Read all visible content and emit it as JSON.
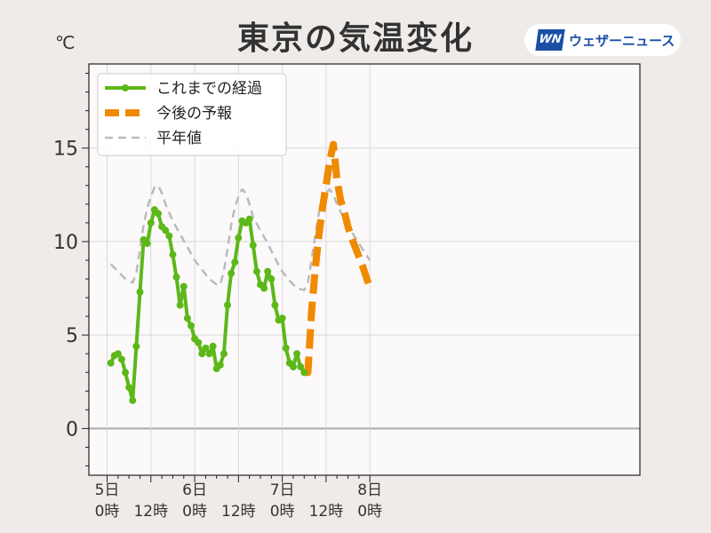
{
  "chart_data": {
    "type": "line",
    "title": "東京の気温変化",
    "unit_label": "℃",
    "ylim": [
      -2.5,
      19.5
    ],
    "xlim": [
      -5,
      146
    ],
    "y_ticks": [
      {
        "value": 0,
        "label": "0"
      },
      {
        "value": 5,
        "label": "5"
      },
      {
        "value": 10,
        "label": "10"
      },
      {
        "value": 15,
        "label": "15"
      }
    ],
    "x_ticks": [
      {
        "value": 0,
        "line1": "5日",
        "line2": "0時"
      },
      {
        "value": 12,
        "line1": "",
        "line2": "12時"
      },
      {
        "value": 24,
        "line1": "6日",
        "line2": "0時"
      },
      {
        "value": 36,
        "line1": "",
        "line2": "12時"
      },
      {
        "value": 48,
        "line1": "7日",
        "line2": "0時"
      },
      {
        "value": 60,
        "line1": "",
        "line2": "12時"
      },
      {
        "value": 72,
        "line1": "8日",
        "line2": "0時"
      }
    ],
    "grid": true,
    "legend_position": "top-left",
    "series": [
      {
        "name": "これまでの経過",
        "color": "#5cb818",
        "style": "solid-markers",
        "x": [
          1,
          2,
          3,
          4,
          5,
          6,
          7,
          8,
          9,
          10,
          11,
          12,
          13,
          14,
          15,
          16,
          17,
          18,
          19,
          20,
          21,
          22,
          23,
          24,
          25,
          26,
          27,
          28,
          29,
          30,
          31,
          32,
          33,
          34,
          35,
          36,
          37,
          38,
          39,
          40,
          41,
          42,
          43,
          44,
          45,
          46,
          47,
          48,
          49,
          50,
          51,
          52,
          53,
          54
        ],
        "y": [
          3.5,
          3.9,
          4.0,
          3.7,
          3.0,
          2.2,
          1.5,
          4.4,
          7.3,
          10.1,
          9.9,
          11.0,
          11.7,
          11.5,
          10.8,
          10.6,
          10.3,
          9.3,
          8.1,
          6.6,
          7.6,
          5.9,
          5.5,
          4.8,
          4.6,
          4.0,
          4.3,
          4.0,
          4.4,
          3.2,
          3.4,
          4.0,
          6.6,
          8.3,
          8.9,
          10.2,
          11.1,
          11.0,
          11.2,
          9.8,
          8.4,
          7.7,
          7.5,
          8.4,
          8.0,
          6.6,
          5.8,
          5.9,
          4.3,
          3.5,
          3.3,
          4.0,
          3.3,
          3.0
        ]
      },
      {
        "name": "今後の予報",
        "color": "#f08a00",
        "style": "dashed-thick",
        "x": [
          54,
          55,
          56,
          57,
          58,
          59,
          60,
          61,
          62,
          63,
          64,
          65,
          66,
          67,
          68,
          69,
          70,
          71,
          72
        ],
        "y": [
          3.0,
          3.0,
          6.2,
          8.5,
          10.3,
          11.8,
          13.0,
          14.3,
          15.2,
          13.3,
          12.2,
          11.6,
          10.8,
          10.2,
          9.7,
          9.2,
          8.7,
          8.1,
          7.5
        ]
      },
      {
        "name": "平年値",
        "color": "#bbbbbb",
        "style": "dashed-thin",
        "x": [
          1,
          3,
          5,
          7,
          8,
          9,
          10,
          11,
          12,
          13,
          14,
          15,
          16,
          18,
          20,
          22,
          24,
          26,
          28,
          30,
          31,
          32,
          33,
          34,
          35,
          36,
          37,
          38,
          39,
          40,
          42,
          44,
          46,
          48,
          50,
          52,
          54,
          55,
          56,
          57,
          58,
          59,
          60,
          61,
          62,
          63,
          64,
          66,
          68,
          70,
          72
        ],
        "y": [
          8.8,
          8.4,
          8.0,
          7.8,
          8.3,
          9.6,
          10.9,
          11.8,
          12.4,
          12.9,
          13.0,
          12.6,
          12.0,
          11.1,
          10.4,
          9.7,
          9.0,
          8.5,
          8.0,
          7.7,
          7.7,
          8.4,
          9.6,
          10.9,
          11.8,
          12.4,
          12.8,
          12.6,
          12.0,
          11.3,
          10.6,
          9.9,
          9.1,
          8.4,
          7.9,
          7.5,
          7.4,
          7.8,
          9.0,
          10.3,
          11.5,
          12.2,
          12.6,
          12.8,
          12.5,
          12.0,
          11.6,
          10.9,
          10.2,
          9.6,
          9.0
        ]
      }
    ]
  },
  "logo": {
    "mark": "WN",
    "text": "ウェザーニュース"
  }
}
